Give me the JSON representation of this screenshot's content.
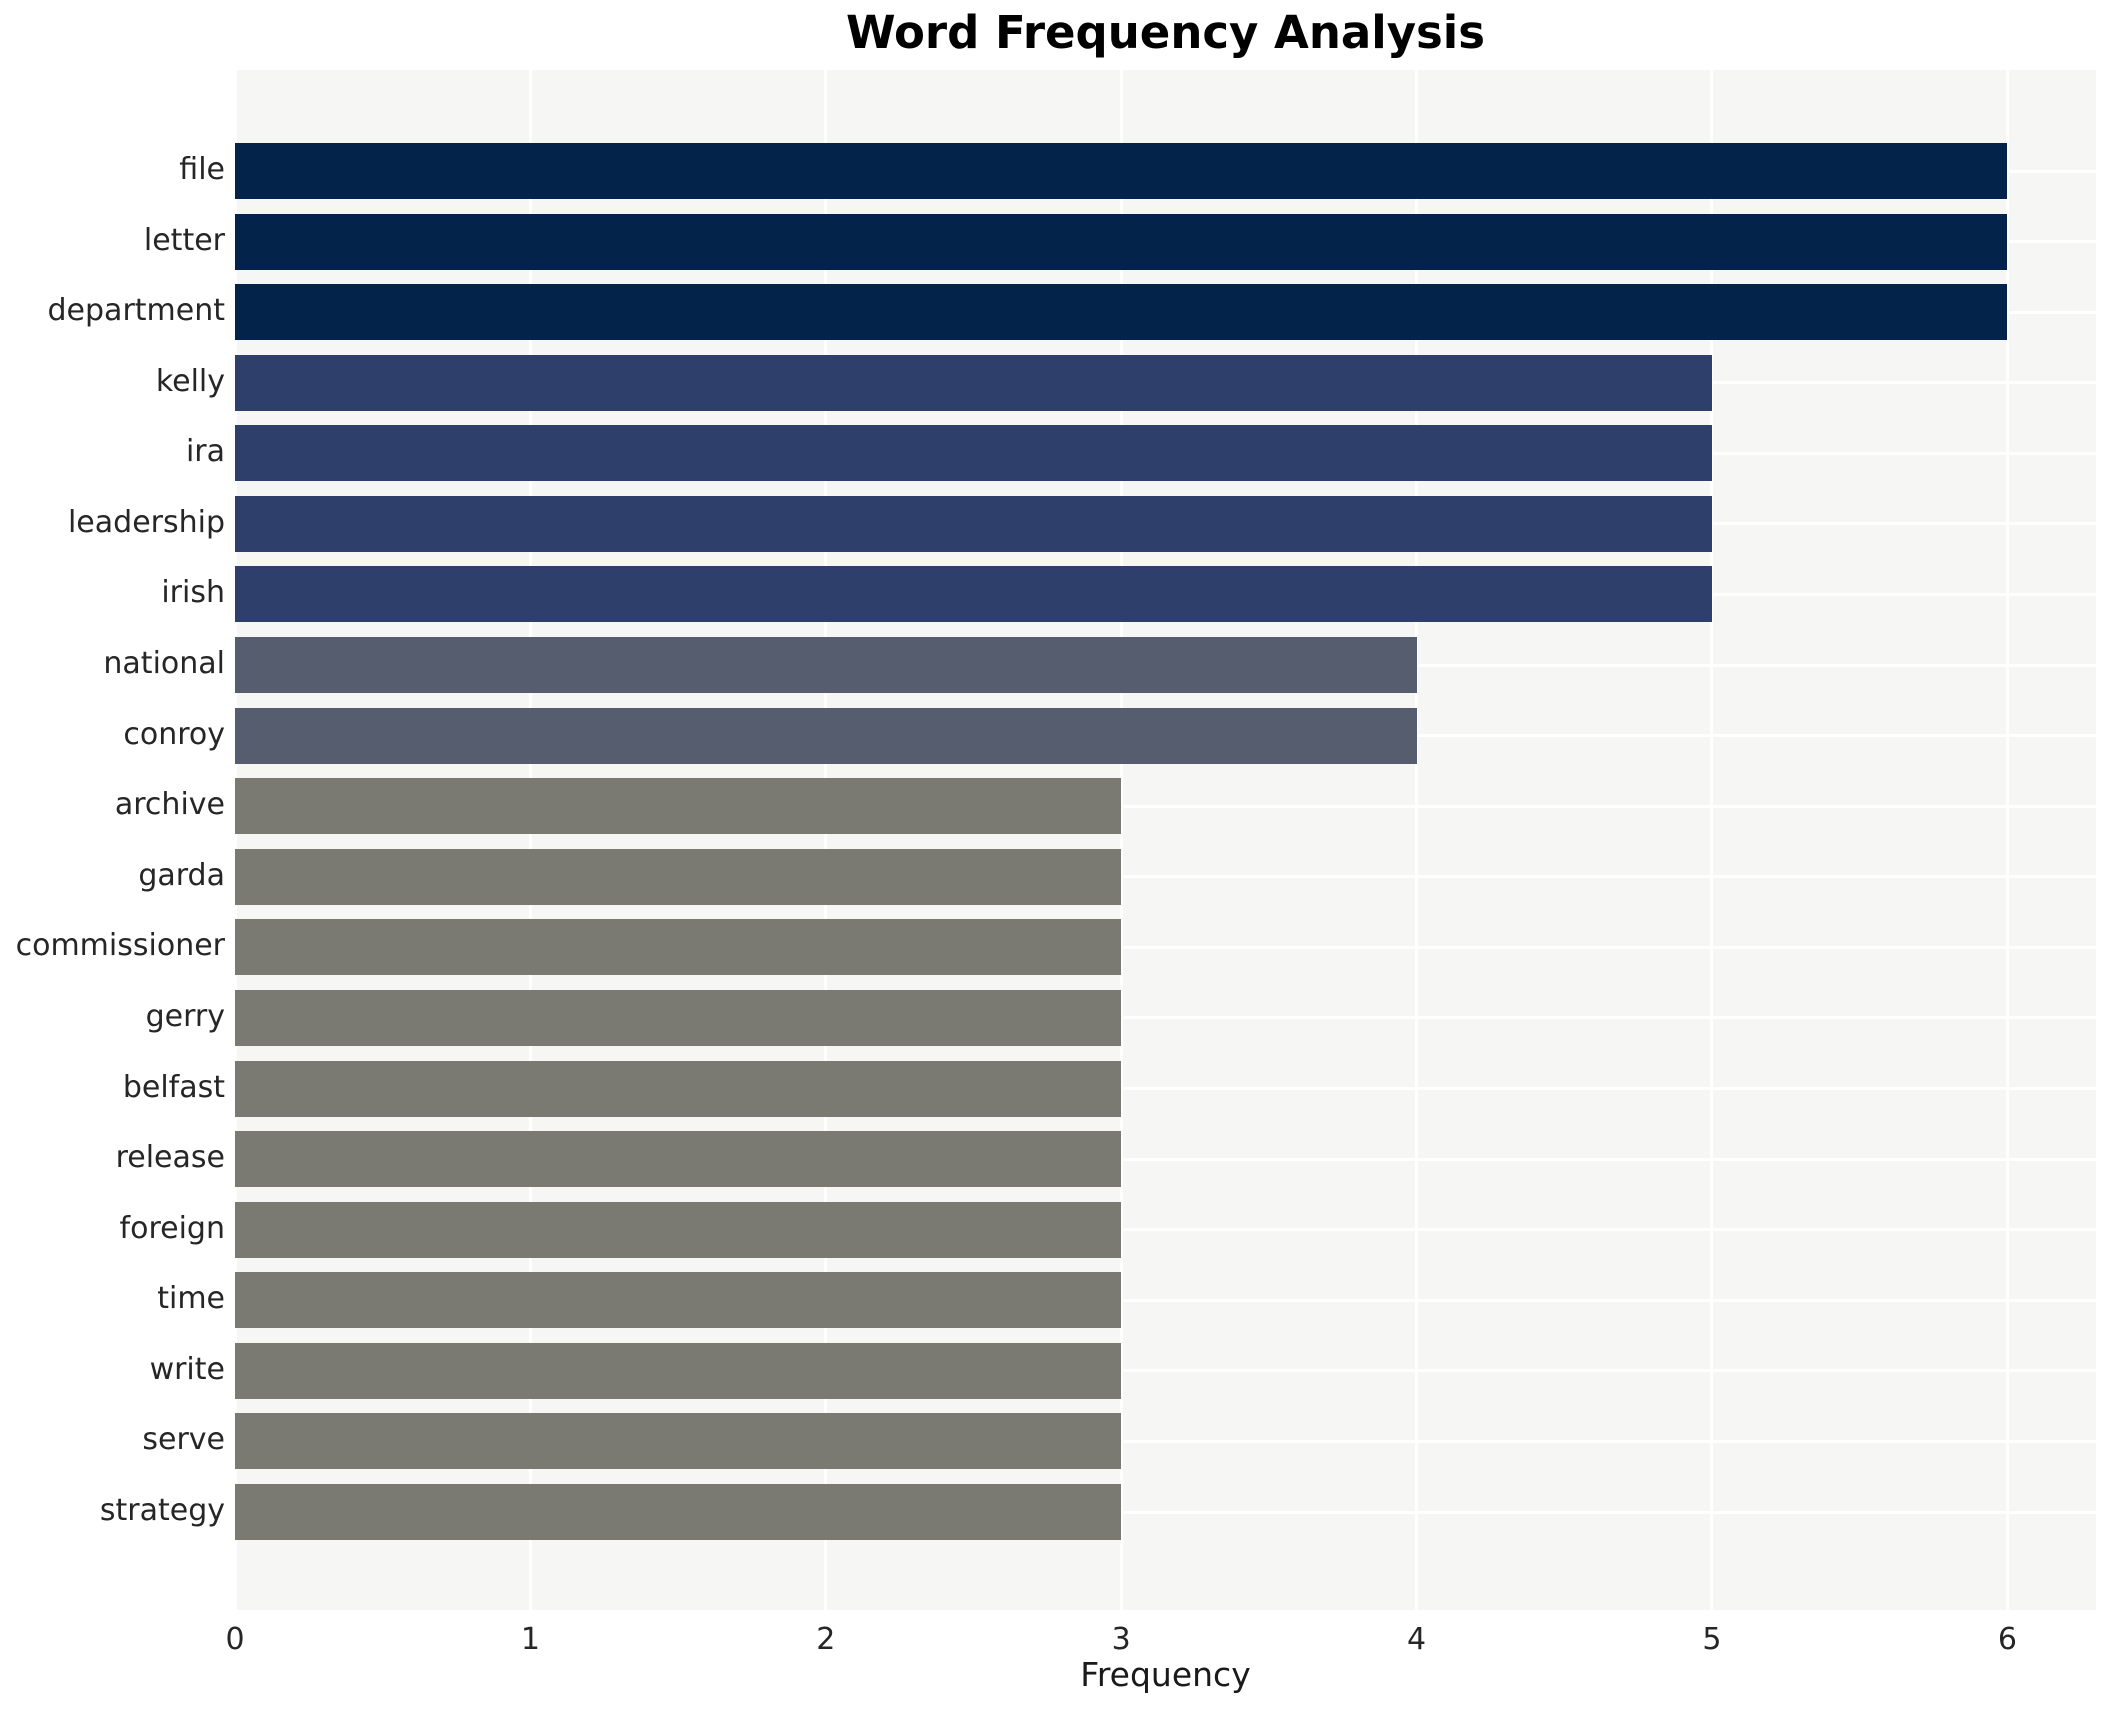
{
  "title": "Word Frequency Analysis",
  "xlabel": "Frequency",
  "chart_data": {
    "type": "bar",
    "orientation": "horizontal",
    "title": "Word Frequency Analysis",
    "xlabel": "Frequency",
    "ylabel": "",
    "categories": [
      "file",
      "letter",
      "department",
      "kelly",
      "ira",
      "leadership",
      "irish",
      "national",
      "conroy",
      "archive",
      "garda",
      "commissioner",
      "gerry",
      "belfast",
      "release",
      "foreign",
      "time",
      "write",
      "serve",
      "strategy"
    ],
    "values": [
      6,
      6,
      6,
      5,
      5,
      5,
      5,
      4,
      4,
      3,
      3,
      3,
      3,
      3,
      3,
      3,
      3,
      3,
      3,
      3
    ],
    "x_ticks": [
      0,
      1,
      2,
      3,
      4,
      5,
      6
    ],
    "xlim": [
      0,
      6.3
    ],
    "grid": true,
    "legend": "none",
    "plot_background": "#f6f6f4",
    "gridline_color": "#ffffff",
    "colors_by_value": {
      "6": "#03234b",
      "5": "#2e3f6b",
      "4": "#565d6e",
      "3": "#7b7a72"
    }
  }
}
